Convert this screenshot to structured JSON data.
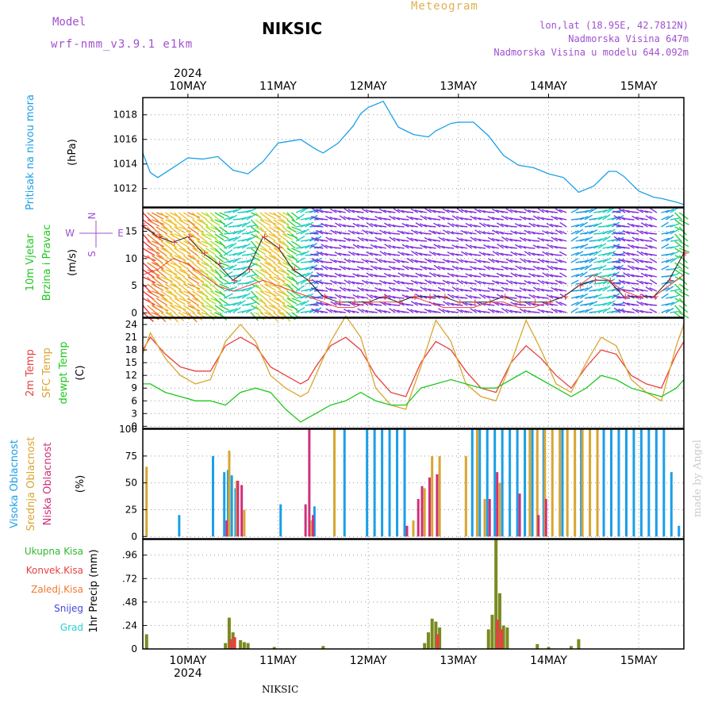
{
  "header": {
    "model_label": "Model",
    "model_name": "wrf-nmm_v3.9.1 e1km",
    "station": "NIKSIC",
    "product": "Meteogram",
    "lonlat": "lon,lat (18.95E, 42.7812N)",
    "elevation": "Nadmorska Visina 647m",
    "elevation_model": "Nadmorska Visina u modelu 644.092m",
    "watermark": "made by Angel",
    "footer_station": "NIKSIC"
  },
  "colors": {
    "pressure": "#1a9fe8",
    "temp2m": "#e84040",
    "sfc_temp": "#d9a530",
    "dewpoint": "#1ec81e",
    "high_cloud": "#1a9fe8",
    "mid_cloud": "#d9a530",
    "low_cloud": "#d0307a",
    "total_precip": "#2fb82f",
    "conv_precip": "#e84040",
    "frozen_precip": "#f07a30",
    "snow": "#4646d9",
    "hail": "#2ad0d0",
    "model_label": "#a050d0",
    "product_label": "#e0b050"
  },
  "x_axis": {
    "year": "2024",
    "dates": [
      "10MAY",
      "11MAY",
      "12MAY",
      "13MAY",
      "14MAY",
      "15MAY"
    ],
    "range_hours": [
      -12,
      132
    ]
  },
  "chart_data": [
    {
      "type": "line",
      "panel": "pressure",
      "ylabel_top": "Pritisak na nivou mora",
      "ylabel_unit": "(hPa)",
      "ylim": [
        1010.5,
        1019.4
      ],
      "yticks": [
        1012,
        1014,
        1016,
        1018
      ],
      "grid": true,
      "series": [
        {
          "x": [
            -12,
            -10,
            -8,
            -4,
            0,
            4,
            8,
            12,
            16,
            20,
            24,
            26,
            30,
            34,
            36,
            40,
            44,
            46,
            48,
            52,
            56,
            60,
            64,
            66,
            70,
            72,
            76,
            80,
            84,
            88,
            92,
            96,
            100,
            104,
            108,
            112,
            114,
            116,
            120,
            124,
            126,
            130,
            132
          ],
          "y": [
            1014.9,
            1013.3,
            1012.9,
            1013.7,
            1014.5,
            1014.4,
            1014.6,
            1013.5,
            1013.2,
            1014.2,
            1015.7,
            1015.8,
            1016.0,
            1015.2,
            1014.9,
            1015.7,
            1017.1,
            1018.1,
            1018.6,
            1019.1,
            1017.0,
            1016.4,
            1016.2,
            1016.7,
            1017.3,
            1017.4,
            1017.4,
            1016.3,
            1014.7,
            1013.9,
            1013.7,
            1013.2,
            1012.9,
            1011.7,
            1012.2,
            1013.4,
            1013.4,
            1013.0,
            1011.8,
            1011.3,
            1011.2,
            1010.9,
            1010.7
          ]
        }
      ]
    },
    {
      "type": "line",
      "panel": "wind",
      "ylabel_top": "10m Vjetar",
      "ylabel_mid": "Brzina i Pravac",
      "ylabel_unit": "(m/s)",
      "compass": {
        "n": "N",
        "s": "S",
        "w": "W",
        "e": "E"
      },
      "ylim": [
        -0.8,
        19.3
      ],
      "yticks": [
        0,
        5,
        10,
        15
      ],
      "grid": true,
      "series": [
        {
          "name": "speed",
          "x": [
            -12,
            -8,
            -4,
            0,
            4,
            8,
            12,
            16,
            20,
            24,
            28,
            32,
            36,
            40,
            44,
            48,
            52,
            56,
            60,
            64,
            68,
            72,
            76,
            80,
            84,
            88,
            92,
            96,
            100,
            104,
            108,
            112,
            116,
            120,
            124,
            128,
            132
          ],
          "y": [
            7,
            8,
            10,
            9,
            7,
            5,
            4,
            5,
            6,
            5,
            4,
            3,
            2,
            1,
            1,
            2,
            2,
            2,
            3,
            2,
            1,
            1,
            1,
            2,
            2,
            1,
            1,
            2,
            3,
            5,
            7,
            6,
            4,
            3,
            3,
            5,
            7
          ]
        },
        {
          "name": "gust",
          "x": [
            -12,
            -8,
            -4,
            0,
            4,
            8,
            12,
            16,
            20,
            24,
            28,
            32,
            36,
            40,
            44,
            48,
            52,
            56,
            60,
            64,
            68,
            72,
            76,
            80,
            84,
            88,
            92,
            96,
            100,
            104,
            108,
            112,
            116,
            120,
            124,
            128,
            132
          ],
          "y": [
            16,
            14,
            13,
            14,
            11,
            9,
            6,
            8,
            14,
            12,
            8,
            6,
            3,
            2,
            2,
            2,
            3,
            2,
            3,
            3,
            3,
            2,
            2,
            2,
            3,
            2,
            2,
            2,
            3,
            5,
            6,
            6,
            3,
            3,
            3,
            6,
            11
          ]
        }
      ]
    },
    {
      "type": "line",
      "panel": "temperature",
      "ylabel_top": "2m Temp",
      "ylabel_mid": "SFC Temp",
      "ylabel_bot": "dewpt Temp",
      "ylabel_unit": "(C)",
      "ylim": [
        -0.5,
        25.5
      ],
      "yticks": [
        0,
        3,
        6,
        9,
        12,
        15,
        18,
        21,
        24
      ],
      "grid": true,
      "series": [
        {
          "name": "2m Temp",
          "x": [
            -12,
            -10,
            -6,
            -2,
            2,
            6,
            10,
            14,
            18,
            22,
            26,
            30,
            32,
            34,
            38,
            42,
            46,
            50,
            54,
            58,
            62,
            66,
            70,
            74,
            78,
            82,
            86,
            90,
            94,
            98,
            102,
            106,
            110,
            114,
            118,
            122,
            126,
            130,
            132
          ],
          "y": [
            18,
            21,
            17,
            14,
            13,
            13,
            19,
            21,
            19,
            14,
            12,
            10,
            11,
            14,
            19,
            21,
            18,
            12,
            8,
            7,
            15,
            20,
            18,
            13,
            9,
            8,
            15,
            19,
            16,
            12,
            9,
            14,
            18,
            17,
            12,
            10,
            9,
            17,
            20
          ]
        },
        {
          "name": "SFC Temp",
          "x": [
            -12,
            -10,
            -6,
            -2,
            2,
            6,
            10,
            14,
            18,
            22,
            26,
            30,
            32,
            34,
            38,
            42,
            46,
            50,
            54,
            58,
            62,
            66,
            70,
            74,
            78,
            82,
            86,
            90,
            94,
            98,
            102,
            106,
            110,
            114,
            118,
            122,
            126,
            130,
            132
          ],
          "y": [
            17,
            22,
            16,
            12,
            10,
            11,
            20,
            24,
            20,
            12,
            9,
            7,
            8,
            12,
            20,
            26,
            21,
            9,
            5,
            4,
            14,
            25,
            20,
            10,
            7,
            6,
            15,
            25,
            18,
            10,
            8,
            15,
            21,
            19,
            11,
            8,
            6,
            19,
            24
          ]
        },
        {
          "name": "dewpt Temp",
          "x": [
            -12,
            -10,
            -6,
            -2,
            2,
            6,
            10,
            14,
            18,
            22,
            26,
            30,
            32,
            34,
            38,
            42,
            46,
            50,
            54,
            58,
            62,
            66,
            70,
            74,
            78,
            82,
            86,
            90,
            94,
            98,
            102,
            106,
            110,
            114,
            118,
            122,
            126,
            130,
            132
          ],
          "y": [
            10,
            10,
            8,
            7,
            6,
            6,
            5,
            8,
            9,
            8,
            4,
            1,
            2,
            3,
            5,
            6,
            8,
            6,
            5,
            5,
            9,
            10,
            11,
            10,
            9,
            9,
            11,
            13,
            11,
            9,
            7,
            9,
            12,
            11,
            9,
            8,
            7,
            9,
            11
          ]
        }
      ]
    },
    {
      "type": "bar",
      "panel": "clouds",
      "ylabel_top": "Visoka Oblacnost",
      "ylabel_mid": "Srednja Oblacnost",
      "ylabel_bot": "Niska Oblacnost",
      "ylabel_unit": "(%)",
      "ylim": [
        -2,
        100
      ],
      "yticks": [
        0,
        25,
        50,
        75,
        100
      ],
      "grid": true,
      "series": [
        {
          "name": "high",
          "x": [
            -2,
            7,
            10,
            11,
            12,
            13,
            25,
            34,
            42,
            48,
            50,
            52,
            54,
            56,
            58,
            76,
            78,
            80,
            82,
            84,
            86,
            88,
            90,
            92,
            95,
            100,
            105,
            111,
            113,
            115,
            117,
            119,
            121,
            123,
            125,
            127,
            129,
            131
          ],
          "y": [
            20,
            75,
            60,
            62,
            57,
            45,
            30,
            28,
            100,
            100,
            100,
            100,
            100,
            100,
            100,
            100,
            100,
            100,
            100,
            100,
            100,
            100,
            100,
            100,
            100,
            100,
            100,
            100,
            100,
            100,
            100,
            100,
            100,
            100,
            100,
            100,
            60,
            10
          ]
        },
        {
          "name": "mid",
          "x": [
            -11,
            11,
            13,
            15,
            33,
            39,
            60,
            63,
            65,
            67,
            74,
            77,
            79,
            83,
            91,
            93,
            95,
            97,
            99,
            101,
            103,
            105,
            107,
            109
          ],
          "y": [
            65,
            80,
            52,
            25,
            15,
            100,
            15,
            45,
            75,
            75,
            75,
            100,
            35,
            50,
            100,
            100,
            100,
            100,
            100,
            100,
            100,
            100,
            100,
            100
          ]
        },
        {
          "name": "low",
          "x": [
            10,
            13,
            14,
            31,
            32,
            33,
            58,
            61,
            62,
            64,
            66,
            80,
            82,
            88,
            93,
            95
          ],
          "y": [
            15,
            52,
            48,
            30,
            100,
            20,
            10,
            35,
            47,
            55,
            58,
            35,
            60,
            40,
            20,
            35
          ]
        }
      ]
    },
    {
      "type": "bar",
      "panel": "precip",
      "ylabel_unit": "1hr Precip (mm)",
      "legend": [
        "Ukupna Kisa",
        "Konvek.Kisa",
        "Zaledj.Kisa",
        "Snijeg",
        "Grad"
      ],
      "ylim": [
        0,
        1.12
      ],
      "yticks": [
        0,
        0.24,
        0.48,
        0.72,
        0.96
      ],
      "grid": true,
      "series": [
        {
          "name": "Ukupna Kisa",
          "x": [
            -11,
            10,
            11,
            12,
            14,
            15,
            16,
            23,
            36,
            63,
            64,
            65,
            66,
            67,
            80,
            81,
            82,
            83,
            84,
            85,
            93,
            96,
            102,
            104
          ],
          "y": [
            0.15,
            0.06,
            0.32,
            0.17,
            0.09,
            0.07,
            0.06,
            0.02,
            0.03,
            0.06,
            0.17,
            0.31,
            0.28,
            0.22,
            0.2,
            0.35,
            1.12,
            0.57,
            0.24,
            0.22,
            0.05,
            0.02,
            0.03,
            0.1
          ]
        },
        {
          "name": "Konvek.Kisa",
          "x": [
            11,
            12,
            66,
            82,
            83
          ],
          "y": [
            0.1,
            0.12,
            0.15,
            0.3,
            0.2
          ]
        }
      ]
    }
  ]
}
